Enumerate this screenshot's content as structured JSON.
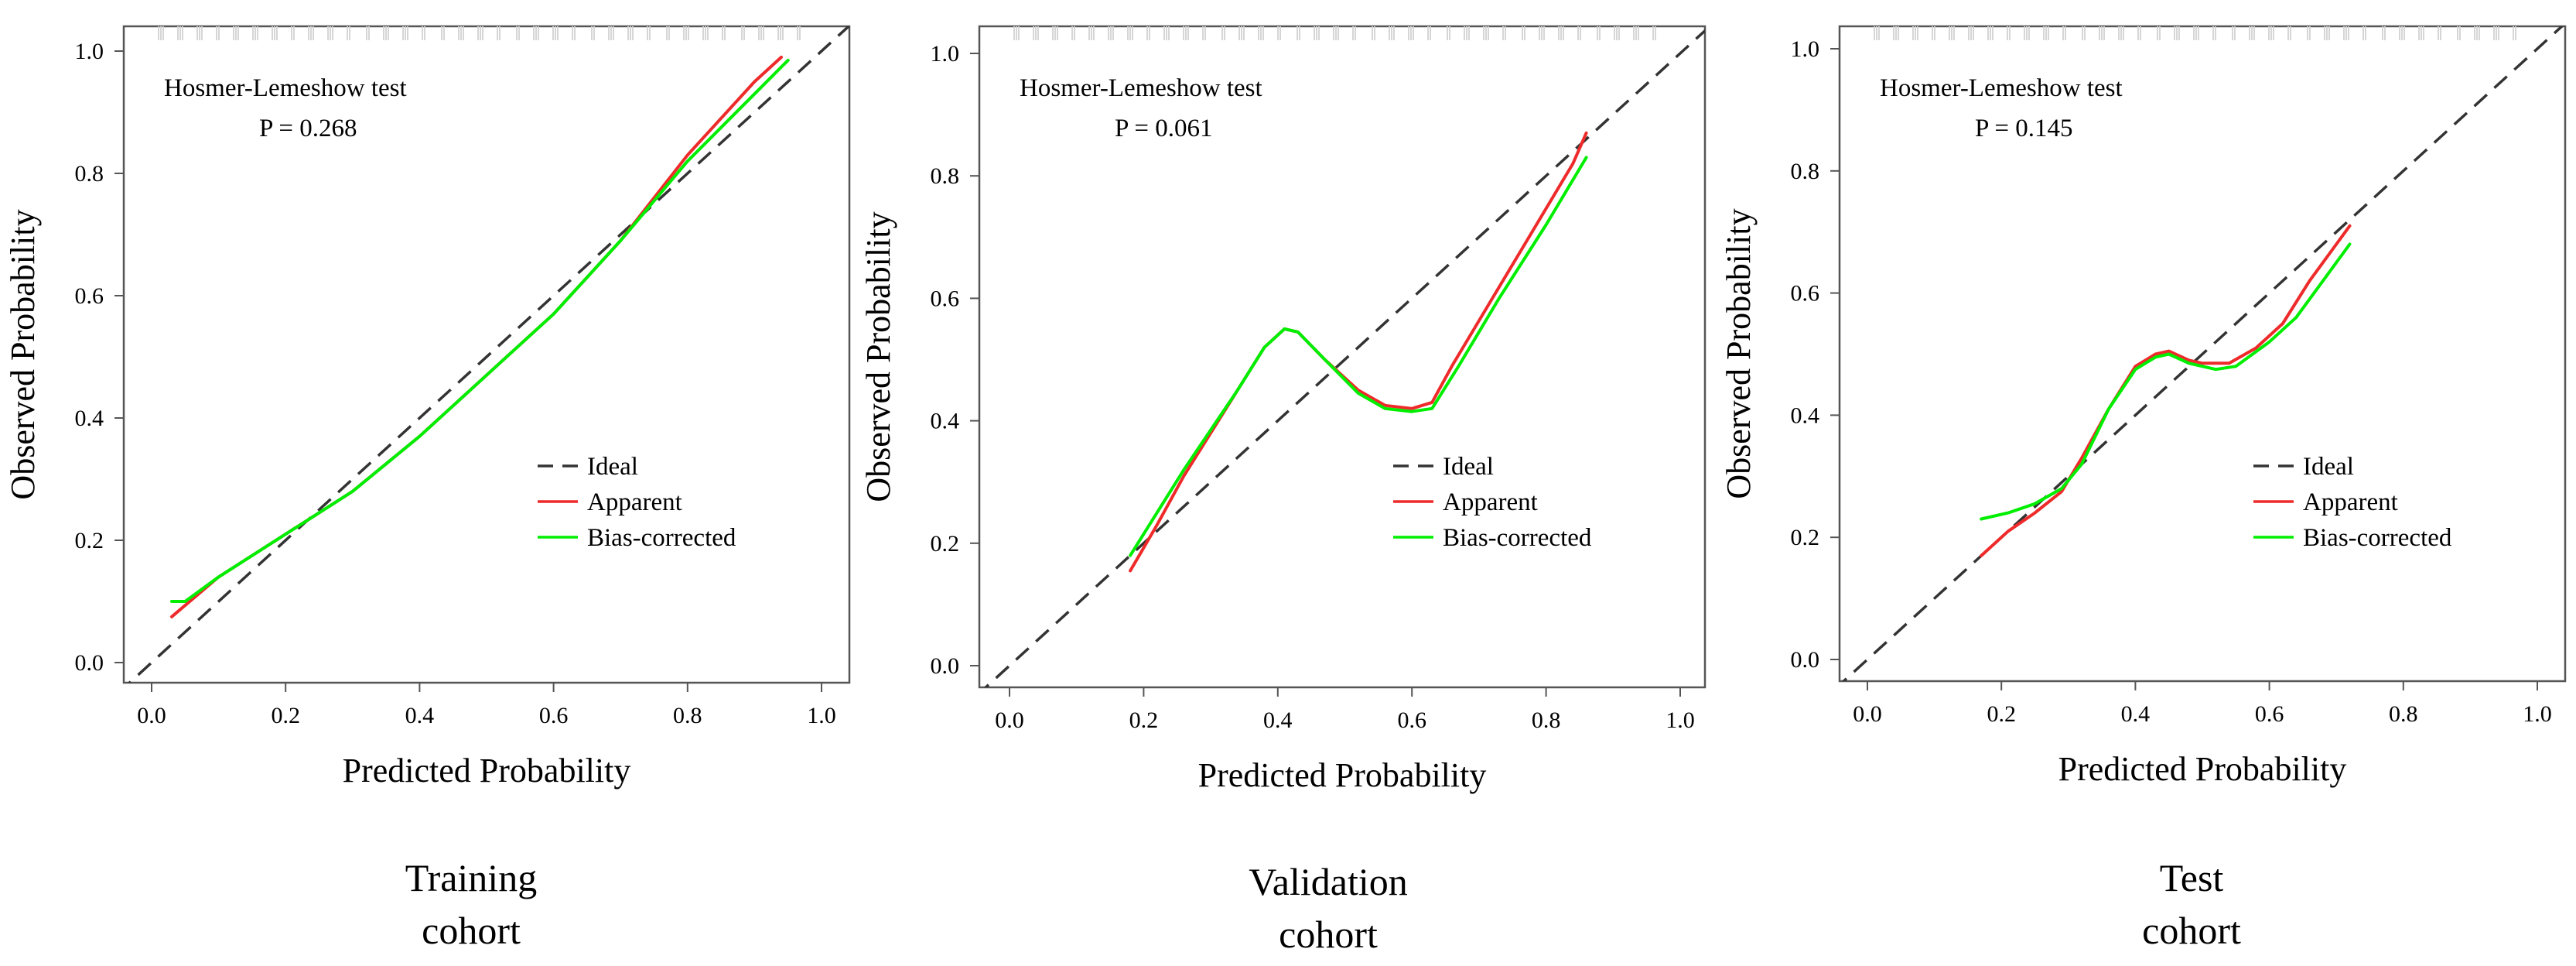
{
  "figure": {
    "captions": [
      {
        "line1": "Training",
        "line2": "cohort"
      },
      {
        "line1": "Validation",
        "line2": "cohort"
      },
      {
        "line1": "Test",
        "line2": "cohort"
      }
    ]
  },
  "chart_data": [
    {
      "type": "line",
      "panel": "Training cohort",
      "xlabel": "Predicted Probability",
      "ylabel": "Observed Probability",
      "xlim": [
        0,
        1
      ],
      "ylim": [
        0,
        1
      ],
      "x_ticks": [
        "0.0",
        "0.2",
        "0.4",
        "0.6",
        "0.8",
        "1.0"
      ],
      "y_ticks": [
        "0.0",
        "0.2",
        "0.4",
        "0.6",
        "0.8",
        "1.0"
      ],
      "annotation": {
        "line1": "Hosmer-Lemeshow test",
        "line2": "P = 0.268"
      },
      "legend": {
        "position": "bottom-right",
        "entries": [
          "Ideal",
          "Apparent",
          "Bias-corrected"
        ]
      },
      "series": [
        {
          "name": "Ideal",
          "color": "#333333",
          "style": "dashed",
          "points": [
            [
              -0.05,
              -0.05
            ],
            [
              1.05,
              1.05
            ]
          ]
        },
        {
          "name": "Apparent",
          "color": "#ee2a2a",
          "style": "solid",
          "points": [
            [
              0.03,
              0.075
            ],
            [
              0.1,
              0.14
            ],
            [
              0.2,
              0.21
            ],
            [
              0.3,
              0.28
            ],
            [
              0.4,
              0.37
            ],
            [
              0.5,
              0.47
            ],
            [
              0.6,
              0.57
            ],
            [
              0.7,
              0.69
            ],
            [
              0.8,
              0.83
            ],
            [
              0.9,
              0.95
            ],
            [
              0.94,
              0.99
            ]
          ]
        },
        {
          "name": "Bias-corrected",
          "color": "#00ee00",
          "style": "solid",
          "points": [
            [
              0.03,
              0.1
            ],
            [
              0.05,
              0.1
            ],
            [
              0.1,
              0.14
            ],
            [
              0.2,
              0.21
            ],
            [
              0.3,
              0.28
            ],
            [
              0.4,
              0.37
            ],
            [
              0.5,
              0.47
            ],
            [
              0.6,
              0.57
            ],
            [
              0.7,
              0.69
            ],
            [
              0.8,
              0.82
            ],
            [
              0.9,
              0.93
            ],
            [
              0.95,
              0.985
            ]
          ]
        }
      ]
    },
    {
      "type": "line",
      "panel": "Validation cohort",
      "xlabel": "Predicted Probability",
      "ylabel": "Observed Probability",
      "xlim": [
        0,
        1
      ],
      "ylim": [
        0,
        1
      ],
      "x_ticks": [
        "0.0",
        "0.2",
        "0.4",
        "0.6",
        "0.8",
        "1.0"
      ],
      "y_ticks": [
        "0.0",
        "0.2",
        "0.4",
        "0.6",
        "0.8",
        "1.0"
      ],
      "annotation": {
        "line1": "Hosmer-Lemeshow test",
        "line2": "P = 0.061"
      },
      "legend": {
        "position": "bottom-right",
        "entries": [
          "Ideal",
          "Apparent",
          "Bias-corrected"
        ]
      },
      "series": [
        {
          "name": "Ideal",
          "color": "#333333",
          "style": "dashed",
          "points": [
            [
              -0.05,
              -0.05
            ],
            [
              1.05,
              1.05
            ]
          ]
        },
        {
          "name": "Apparent",
          "color": "#ee2a2a",
          "style": "solid",
          "points": [
            [
              0.18,
              0.155
            ],
            [
              0.22,
              0.23
            ],
            [
              0.26,
              0.31
            ],
            [
              0.3,
              0.38
            ],
            [
              0.34,
              0.45
            ],
            [
              0.38,
              0.52
            ],
            [
              0.41,
              0.55
            ],
            [
              0.43,
              0.545
            ],
            [
              0.47,
              0.5
            ],
            [
              0.52,
              0.45
            ],
            [
              0.56,
              0.425
            ],
            [
              0.6,
              0.42
            ],
            [
              0.63,
              0.43
            ],
            [
              0.66,
              0.49
            ],
            [
              0.72,
              0.6
            ],
            [
              0.78,
              0.71
            ],
            [
              0.84,
              0.82
            ],
            [
              0.86,
              0.87
            ]
          ]
        },
        {
          "name": "Bias-corrected",
          "color": "#00ee00",
          "style": "solid",
          "points": [
            [
              0.18,
              0.18
            ],
            [
              0.22,
              0.25
            ],
            [
              0.26,
              0.32
            ],
            [
              0.3,
              0.385
            ],
            [
              0.34,
              0.45
            ],
            [
              0.38,
              0.52
            ],
            [
              0.41,
              0.55
            ],
            [
              0.43,
              0.545
            ],
            [
              0.47,
              0.5
            ],
            [
              0.52,
              0.445
            ],
            [
              0.56,
              0.42
            ],
            [
              0.6,
              0.415
            ],
            [
              0.63,
              0.42
            ],
            [
              0.67,
              0.49
            ],
            [
              0.73,
              0.6
            ],
            [
              0.8,
              0.72
            ],
            [
              0.86,
              0.83
            ]
          ]
        }
      ]
    },
    {
      "type": "line",
      "panel": "Test cohort",
      "xlabel": "Predicted Probability",
      "ylabel": "Observed Probability",
      "xlim": [
        0,
        1
      ],
      "ylim": [
        0,
        1
      ],
      "x_ticks": [
        "0.0",
        "0.2",
        "0.4",
        "0.6",
        "0.8",
        "1.0"
      ],
      "y_ticks": [
        "0.0",
        "0.2",
        "0.4",
        "0.6",
        "0.8",
        "1.0"
      ],
      "annotation": {
        "line1": "Hosmer-Lemeshow test",
        "line2": "P = 0.145"
      },
      "legend": {
        "position": "bottom-right",
        "entries": [
          "Ideal",
          "Apparent",
          "Bias-corrected"
        ]
      },
      "series": [
        {
          "name": "Ideal",
          "color": "#333333",
          "style": "dashed",
          "points": [
            [
              -0.05,
              -0.05
            ],
            [
              1.05,
              1.05
            ]
          ]
        },
        {
          "name": "Apparent",
          "color": "#ee2a2a",
          "style": "solid",
          "points": [
            [
              0.17,
              0.17
            ],
            [
              0.21,
              0.21
            ],
            [
              0.25,
              0.24
            ],
            [
              0.29,
              0.275
            ],
            [
              0.32,
              0.33
            ],
            [
              0.36,
              0.41
            ],
            [
              0.4,
              0.48
            ],
            [
              0.43,
              0.5
            ],
            [
              0.45,
              0.505
            ],
            [
              0.48,
              0.49
            ],
            [
              0.5,
              0.485
            ],
            [
              0.54,
              0.485
            ],
            [
              0.58,
              0.51
            ],
            [
              0.62,
              0.55
            ],
            [
              0.66,
              0.62
            ],
            [
              0.7,
              0.68
            ],
            [
              0.72,
              0.71
            ]
          ]
        },
        {
          "name": "Bias-corrected",
          "color": "#00ee00",
          "style": "solid",
          "points": [
            [
              0.17,
              0.23
            ],
            [
              0.21,
              0.24
            ],
            [
              0.25,
              0.255
            ],
            [
              0.29,
              0.28
            ],
            [
              0.32,
              0.32
            ],
            [
              0.36,
              0.41
            ],
            [
              0.4,
              0.475
            ],
            [
              0.43,
              0.495
            ],
            [
              0.45,
              0.5
            ],
            [
              0.48,
              0.485
            ],
            [
              0.52,
              0.475
            ],
            [
              0.55,
              0.48
            ],
            [
              0.6,
              0.52
            ],
            [
              0.64,
              0.56
            ],
            [
              0.68,
              0.62
            ],
            [
              0.72,
              0.68
            ]
          ]
        }
      ]
    }
  ]
}
